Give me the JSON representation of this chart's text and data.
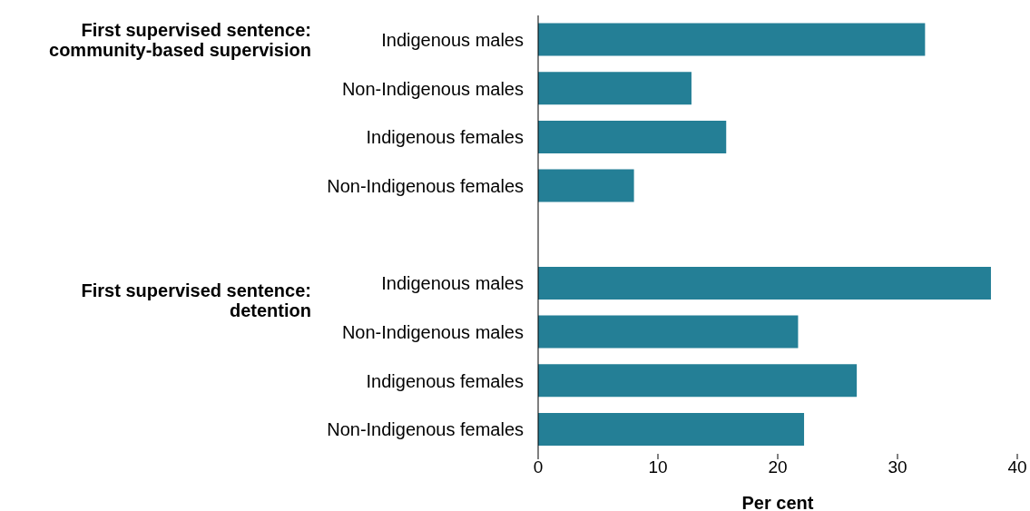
{
  "chart_data": {
    "type": "bar",
    "orientation": "horizontal",
    "xlabel": "Per cent",
    "categories": [
      "Indigenous males",
      "Non-Indigenous males",
      "Indigenous females",
      "Non-Indigenous females",
      null,
      "Indigenous males",
      "Non-Indigenous males",
      "Indigenous females",
      "Non-Indigenous females"
    ],
    "values": [
      32.3,
      12.8,
      15.7,
      8.0,
      null,
      37.8,
      21.7,
      26.6,
      22.2
    ],
    "color": "#247f96",
    "xlim": [
      0,
      40
    ],
    "xticks": [
      0,
      10,
      20,
      30,
      40
    ],
    "annotations": [
      "First supervised sentence: community-based supervision",
      "First supervised sentence: detention"
    ]
  }
}
